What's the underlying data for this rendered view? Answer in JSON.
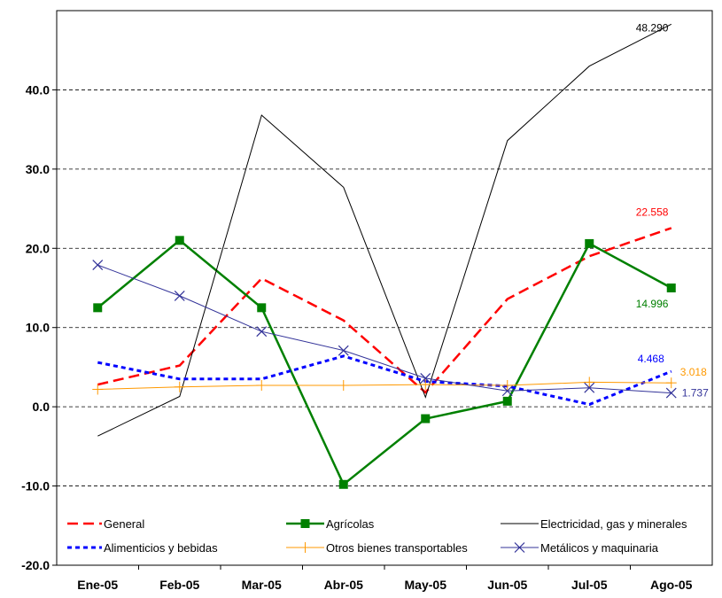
{
  "chart_data": {
    "type": "line",
    "categories": [
      "Ene-05",
      "Feb-05",
      "Mar-05",
      "Abr-05",
      "May-05",
      "Jun-05",
      "Jul-05",
      "Ago-05"
    ],
    "ylim": [
      -20,
      50
    ],
    "y_ticks": [
      "-20.0",
      "-10.0",
      "0.0",
      "10.0",
      "20.0",
      "30.0",
      "40.0"
    ],
    "grid": "horizontal dashed",
    "legend_position": "bottom-inside",
    "series": [
      {
        "name": "General",
        "color": "#ff0000",
        "style": "dashed",
        "marker": "none",
        "values": [
          2.8,
          5.2,
          16.2,
          10.9,
          1.8,
          13.6,
          19.0,
          22.558
        ],
        "end_label": "22.558"
      },
      {
        "name": "Agrícolas",
        "color": "#008000",
        "style": "solid",
        "marker": "square",
        "values": [
          12.5,
          21.0,
          12.5,
          -9.8,
          -1.5,
          0.7,
          20.6,
          14.996
        ],
        "end_label": "14.996"
      },
      {
        "name": "Electricidad, gas y minerales",
        "color": "#000000",
        "style": "solid",
        "marker": "none",
        "values": [
          -3.7,
          1.3,
          36.8,
          27.7,
          1.2,
          33.6,
          43.0,
          48.29
        ],
        "end_label": "48.290"
      },
      {
        "name": "Alimenticios y bebidas",
        "color": "#0000ff",
        "style": "dotted",
        "marker": "none",
        "values": [
          5.6,
          3.5,
          3.5,
          6.4,
          3.2,
          2.6,
          0.3,
          4.468
        ],
        "end_label": "4.468"
      },
      {
        "name": "Otros bienes transportables",
        "color": "#ff9900",
        "style": "solid",
        "marker": "plus",
        "values": [
          2.2,
          2.5,
          2.7,
          2.7,
          2.8,
          2.7,
          3.1,
          3.018
        ],
        "end_label": "3.018"
      },
      {
        "name": "Metálicos y maquinaria",
        "color": "#333399",
        "style": "solid",
        "marker": "x",
        "values": [
          17.9,
          14.0,
          9.5,
          7.1,
          3.6,
          2.0,
          2.4,
          1.737
        ],
        "end_label": "1.737"
      }
    ]
  }
}
